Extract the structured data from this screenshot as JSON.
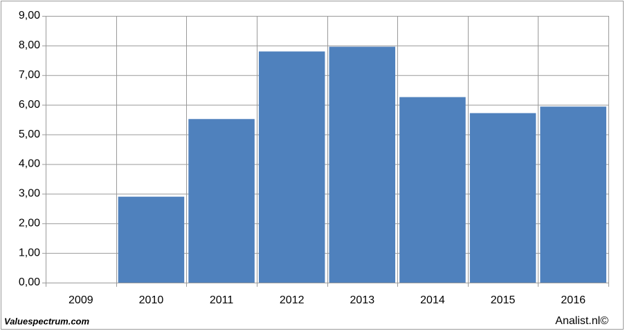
{
  "chart_data": {
    "type": "bar",
    "categories": [
      "2009",
      "2010",
      "2011",
      "2012",
      "2013",
      "2014",
      "2015",
      "2016"
    ],
    "values": [
      null,
      2.9,
      5.52,
      7.8,
      7.96,
      6.26,
      5.72,
      5.94
    ],
    "color": "#4f81bd",
    "ylim": [
      0,
      9
    ],
    "yticks": [
      {
        "value": 0,
        "label": "0,00"
      },
      {
        "value": 1,
        "label": "1,00"
      },
      {
        "value": 2,
        "label": "2,00"
      },
      {
        "value": 3,
        "label": "3,00"
      },
      {
        "value": 4,
        "label": "4,00"
      },
      {
        "value": 5,
        "label": "5,00"
      },
      {
        "value": 6,
        "label": "6,00"
      },
      {
        "value": 7,
        "label": "7,00"
      },
      {
        "value": 8,
        "label": "8,00"
      },
      {
        "value": 9,
        "label": "9,00"
      }
    ],
    "grid": true
  },
  "footer": {
    "left": "Valuespectrum.com",
    "right": "Analist.nl©"
  }
}
